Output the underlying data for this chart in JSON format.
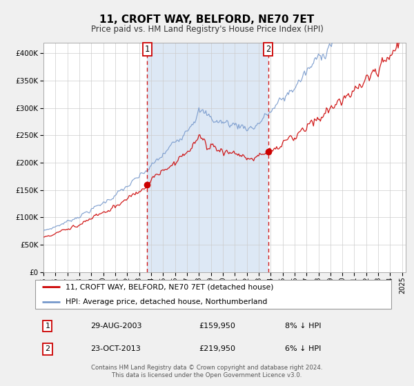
{
  "title": "11, CROFT WAY, BELFORD, NE70 7ET",
  "subtitle": "Price paid vs. HM Land Registry's House Price Index (HPI)",
  "legend_entry1": "11, CROFT WAY, BELFORD, NE70 7ET (detached house)",
  "legend_entry2": "HPI: Average price, detached house, Northumberland",
  "annotation1_label": "1",
  "annotation1_date": "29-AUG-2003",
  "annotation1_price": "£159,950",
  "annotation1_hpi": "8% ↓ HPI",
  "annotation1_year": 2003.66,
  "annotation1_value": 159950,
  "annotation2_label": "2",
  "annotation2_date": "23-OCT-2013",
  "annotation2_price": "£219,950",
  "annotation2_hpi": "6% ↓ HPI",
  "annotation2_year": 2013.81,
  "annotation2_value": 219950,
  "footer1": "Contains HM Land Registry data © Crown copyright and database right 2024.",
  "footer2": "This data is licensed under the Open Government Licence v3.0.",
  "plot_bg_color": "#ffffff",
  "fig_bg_color": "#f0f0f0",
  "red_line_color": "#cc0000",
  "blue_line_color": "#7799cc",
  "vline_color": "#cc0000",
  "shade_color": "#dde8f5",
  "ylim": [
    0,
    420000
  ],
  "yticks": [
    0,
    50000,
    100000,
    150000,
    200000,
    250000,
    300000,
    350000,
    400000
  ],
  "xlabel_start": 1995,
  "xlabel_end": 2025,
  "n_points": 361
}
